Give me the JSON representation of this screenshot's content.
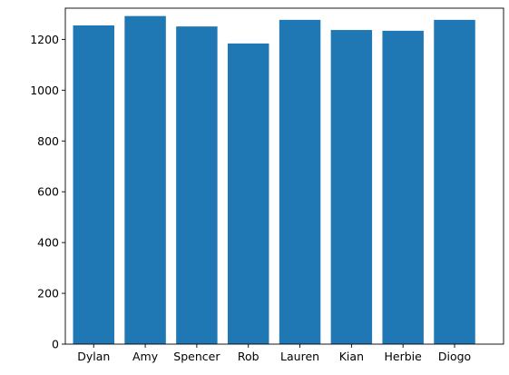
{
  "chart_data": {
    "type": "bar",
    "title": "",
    "xlabel": "",
    "ylabel": "",
    "categories": [
      "Dylan",
      "Amy",
      "Spencer",
      "Rob",
      "Lauren",
      "Kian",
      "Herbie",
      "Diogo"
    ],
    "values": [
      1255,
      1292,
      1251,
      1184,
      1277,
      1237,
      1234,
      1277
    ],
    "ylim": [
      0,
      1323
    ],
    "yticks": [
      0,
      200,
      400,
      600,
      800,
      1000,
      1200
    ],
    "ytick_labels": [
      "0",
      "200",
      "400",
      "600",
      "800",
      "1000",
      "1200"
    ],
    "bar_color": "#1f77b4",
    "grid": false,
    "legend": "none"
  }
}
